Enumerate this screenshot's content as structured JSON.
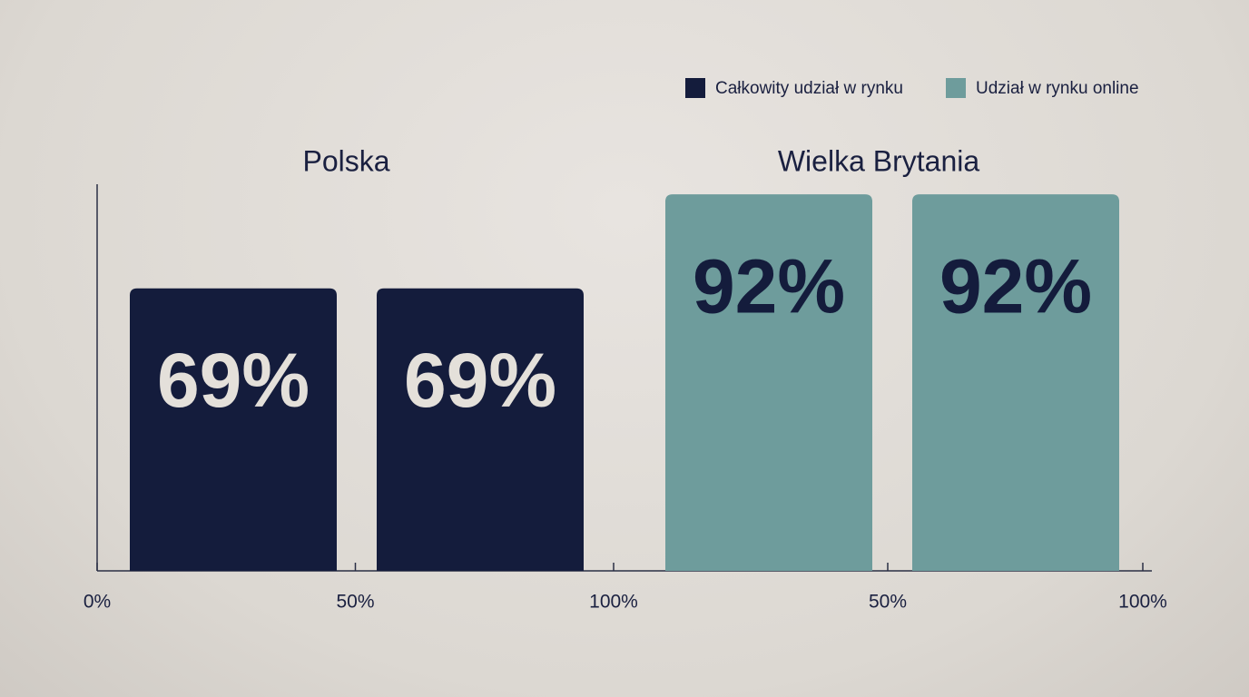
{
  "legend": [
    {
      "name": "Całkowity udział w rynku",
      "color": "#141c3c"
    },
    {
      "name": "Udział w rynku online",
      "color": "#6e9c9c"
    }
  ],
  "chart_data": [
    {
      "type": "bar",
      "title": "Polska",
      "categories": [
        null,
        null
      ],
      "values": [
        69,
        69
      ],
      "value_labels": [
        "69%",
        "69%"
      ],
      "color": "#141c3c",
      "label_color": "#e4e0da",
      "ylim": [
        0,
        100
      ],
      "xlim": [
        0,
        100
      ],
      "xticks": [
        {
          "value": 0,
          "label": "0%"
        },
        {
          "value": 50,
          "label": "50%"
        },
        {
          "value": 100,
          "label": "100%"
        }
      ]
    },
    {
      "type": "bar",
      "title": "Wielka Brytania",
      "categories": [
        null,
        null
      ],
      "values": [
        92,
        92
      ],
      "value_labels": [
        "92%",
        "92%"
      ],
      "color": "#6e9c9c",
      "label_color": "#141c3c",
      "ylim": [
        0,
        100
      ],
      "xlim": [
        0,
        100
      ],
      "xticks": [
        {
          "value": 50,
          "label": "50%"
        },
        {
          "value": 100,
          "label": "100%"
        }
      ]
    }
  ]
}
